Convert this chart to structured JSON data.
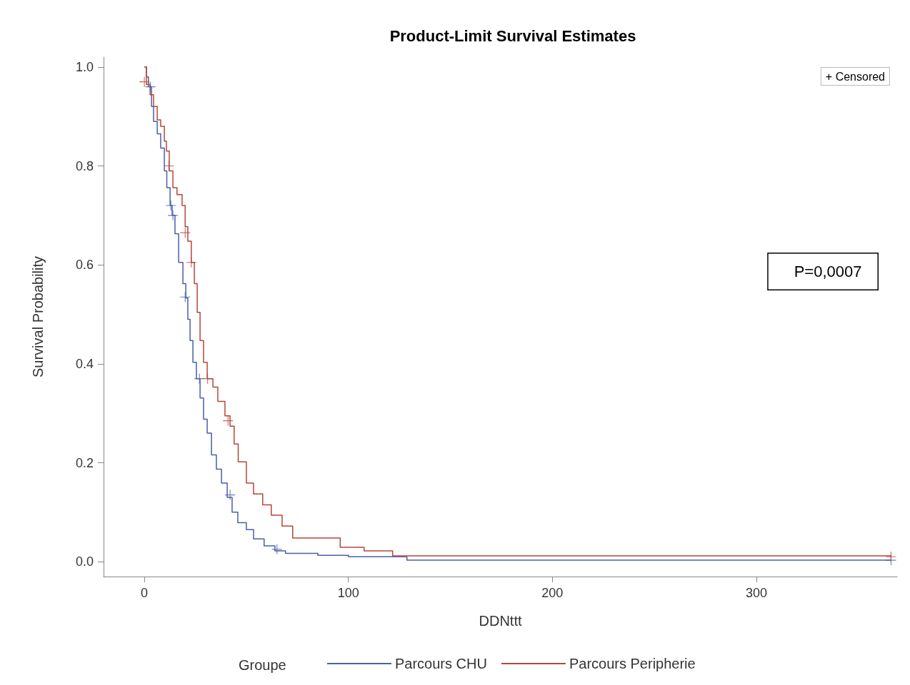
{
  "chart_data": {
    "type": "step",
    "title": "Product-Limit Survival Estimates",
    "xlabel": "DDNttt",
    "ylabel": "Survival Probability",
    "legend_title": "Groupe",
    "legend": "bottom",
    "grid": false,
    "xlim": [
      -20,
      369
    ],
    "xticks": [
      0,
      100,
      200,
      300
    ],
    "ylim": [
      -0.03,
      1.02
    ],
    "yticks": [
      {
        "value": 0,
        "label": "0.0"
      },
      {
        "value": 0.2,
        "label": "0.2"
      },
      {
        "value": 0.4,
        "label": "0.4"
      },
      {
        "value": 0.6,
        "label": "0.6"
      },
      {
        "value": 0.8,
        "label": "0.8"
      },
      {
        "value": 1,
        "label": "1.0"
      }
    ],
    "annotations": [
      "+ Censored",
      "P=0,0007"
    ],
    "series": [
      {
        "name": "Parcours CHU",
        "color": "#4a5fa8",
        "x": [
          0,
          1,
          2,
          3.5,
          4.5,
          6.3,
          8,
          9.8,
          11,
          12.6,
          13.6,
          15,
          16.8,
          18.9,
          20.3,
          21.3,
          22.4,
          23.8,
          25.5,
          27.3,
          29,
          30.8,
          32.9,
          35.3,
          37.8,
          40.6,
          43,
          45.8,
          50,
          53.5,
          58.7,
          64,
          69.2,
          85,
          100,
          128.7,
          366
        ],
        "values": [
          1.0,
          0.98,
          0.96,
          0.92,
          0.89,
          0.865,
          0.836,
          0.79,
          0.756,
          0.72,
          0.7,
          0.663,
          0.605,
          0.562,
          0.533,
          0.49,
          0.447,
          0.403,
          0.37,
          0.331,
          0.288,
          0.26,
          0.216,
          0.187,
          0.159,
          0.13,
          0.1,
          0.079,
          0.065,
          0.046,
          0.032,
          0.022,
          0.017,
          0.013,
          0.01,
          0.003,
          0.003
        ]
      },
      {
        "name": "Parcours Peripherie",
        "color": "#b5473a",
        "x": [
          0,
          1,
          2.8,
          4.5,
          6.3,
          8,
          9.8,
          10.8,
          12.2,
          14,
          16,
          18.5,
          20,
          21.3,
          23,
          24.5,
          25.9,
          27.3,
          29,
          30.8,
          33.6,
          36,
          39.5,
          42,
          44,
          46,
          50,
          53.5,
          58,
          62.2,
          67.5,
          72.7,
          93.7,
          96,
          107.7,
          121.7,
          366
        ],
        "values": [
          1.0,
          0.965,
          0.944,
          0.92,
          0.893,
          0.88,
          0.85,
          0.83,
          0.79,
          0.756,
          0.742,
          0.72,
          0.677,
          0.648,
          0.605,
          0.562,
          0.504,
          0.447,
          0.403,
          0.37,
          0.353,
          0.324,
          0.295,
          0.274,
          0.238,
          0.202,
          0.159,
          0.137,
          0.115,
          0.094,
          0.072,
          0.048,
          0.048,
          0.029,
          0.022,
          0.012,
          0.01
        ]
      },
      {
        "type": "scatter",
        "marker": "cross",
        "color": "#4a5fa8",
        "x": [
          3,
          13,
          14,
          20,
          27,
          42,
          65,
          366
        ],
        "values": [
          0.96,
          0.72,
          0.7,
          0.535,
          0.37,
          0.135,
          0.025,
          0.003
        ]
      },
      {
        "type": "scatter",
        "marker": "cross",
        "color": "#b5473a",
        "x": [
          0,
          12,
          20,
          23,
          31,
          41,
          366
        ],
        "values": [
          0.97,
          0.8,
          0.665,
          0.605,
          0.37,
          0.285,
          0.01
        ]
      }
    ]
  }
}
